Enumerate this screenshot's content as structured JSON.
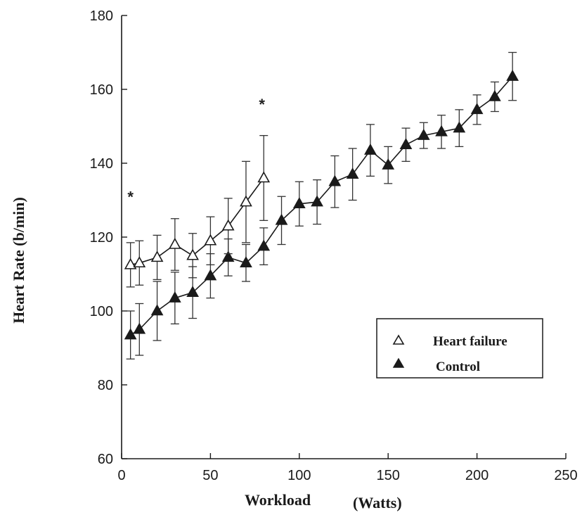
{
  "chart_data": {
    "type": "line",
    "xlabel_left": "Workload",
    "xlabel_right": "(Watts)",
    "ylabel": "Heart Rate (b/min)",
    "xlim": [
      0,
      250
    ],
    "ylim": [
      60,
      180
    ],
    "xticks": [
      0,
      50,
      100,
      150,
      200,
      250
    ],
    "yticks": [
      60,
      80,
      100,
      120,
      140,
      160,
      180
    ],
    "grid": false,
    "legend_position": "lower-right",
    "series": [
      {
        "name": "Heart failure",
        "marker": "open-triangle",
        "color": "#1a1a1a",
        "x": [
          5,
          10,
          20,
          30,
          40,
          50,
          60,
          70,
          80
        ],
        "y": [
          112.5,
          113,
          114.5,
          118,
          115,
          119,
          123,
          129.5,
          136
        ],
        "err": [
          6,
          6,
          6,
          7,
          6,
          6.5,
          7.5,
          11,
          11.5
        ]
      },
      {
        "name": "Control",
        "marker": "filled-triangle",
        "color": "#1a1a1a",
        "x": [
          5,
          10,
          20,
          30,
          40,
          50,
          60,
          70,
          80,
          90,
          100,
          110,
          120,
          130,
          140,
          150,
          160,
          170,
          180,
          190,
          200,
          210,
          220
        ],
        "y": [
          93.5,
          95,
          100,
          103.5,
          105,
          109.5,
          114.5,
          113,
          117.5,
          124.5,
          129,
          129.5,
          135,
          137,
          143.5,
          139.5,
          145,
          147.5,
          148.5,
          149.5,
          154.5,
          158,
          163.5
        ],
        "err": [
          6.5,
          7,
          8,
          7,
          7,
          6,
          5,
          5,
          5,
          6.5,
          6,
          6,
          7,
          7,
          7,
          5,
          4.5,
          3.5,
          4.5,
          5,
          4,
          4,
          6.5
        ]
      }
    ],
    "annotations": [
      {
        "text": "*",
        "x": 5,
        "y": 131
      },
      {
        "text": "*",
        "x": 79,
        "y": 156
      }
    ]
  }
}
